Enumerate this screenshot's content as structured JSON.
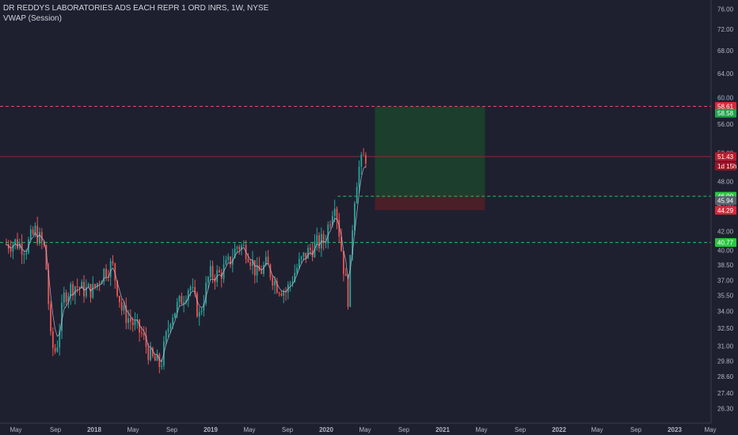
{
  "legend": {
    "title": "DR REDDYS LABORATORIES ADS EACH REPR 1 ORD INRS, 1W, NYSE",
    "indicator": "VWAP (Session)"
  },
  "colors": {
    "background": "#1e2030",
    "up": "#26a69a",
    "down": "#ef5350",
    "target_zone": "#1b3f2c",
    "stop_zone": "#4a1f28",
    "resistance_line": "#e84a5f",
    "support_line": "#22c55e",
    "axis_text": "#b2b5be"
  },
  "chart_data": {
    "type": "candlestick",
    "symbol": "DR REDDYS LABORATORIES ADS EACH REPR 1 ORD INRS",
    "interval": "1W",
    "exchange": "NYSE",
    "y_axis_ticks": [
      "76.00",
      "72.00",
      "68.00",
      "64.00",
      "60.00",
      "56.00",
      "52.00",
      "48.00",
      "45.00",
      "42.00",
      "40.00",
      "38.50",
      "37.00",
      "35.50",
      "34.00",
      "32.50",
      "31.00",
      "29.80",
      "28.60",
      "27.40",
      "26.30"
    ],
    "y_scale": "log",
    "y_range": [
      25.6,
      78.0
    ],
    "x_axis_ticks": [
      "May",
      "Sep",
      "2018",
      "May",
      "Sep",
      "2019",
      "May",
      "Sep",
      "2020",
      "May",
      "Sep",
      "2021",
      "May",
      "Sep",
      "2022",
      "May",
      "Sep",
      "2023",
      "May"
    ],
    "x_range": [
      "2017-04-01",
      "2023-05-15"
    ],
    "series": [
      {
        "type": "ohlc_close_path",
        "points": [
          [
            "2017-04-01",
            40.6
          ],
          [
            "2017-05-01",
            40.8
          ],
          [
            "2017-06-01",
            40.2
          ],
          [
            "2017-07-01",
            42.0
          ],
          [
            "2017-08-01",
            40.0
          ],
          [
            "2017-08-20",
            31.0
          ],
          [
            "2017-09-05",
            30.5
          ],
          [
            "2017-10-01",
            35.5
          ],
          [
            "2017-11-01",
            36.5
          ],
          [
            "2017-12-01",
            36.0
          ],
          [
            "2018-01-01",
            36.0
          ],
          [
            "2018-02-01",
            37.8
          ],
          [
            "2018-03-01",
            38.5
          ],
          [
            "2018-04-01",
            34.0
          ],
          [
            "2018-05-01",
            33.0
          ],
          [
            "2018-06-01",
            32.0
          ],
          [
            "2018-07-01",
            30.0
          ],
          [
            "2018-08-01",
            29.4
          ],
          [
            "2018-09-01",
            33.5
          ],
          [
            "2018-10-01",
            34.8
          ],
          [
            "2018-11-01",
            36.5
          ],
          [
            "2018-12-01",
            33.5
          ],
          [
            "2019-01-01",
            37.5
          ],
          [
            "2019-02-01",
            37.5
          ],
          [
            "2019-03-01",
            38.5
          ],
          [
            "2019-04-01",
            40.5
          ],
          [
            "2019-05-01",
            40.0
          ],
          [
            "2019-06-01",
            37.5
          ],
          [
            "2019-07-01",
            38.5
          ],
          [
            "2019-08-01",
            36.5
          ],
          [
            "2019-09-01",
            35.8
          ],
          [
            "2019-10-01",
            38.0
          ],
          [
            "2019-11-01",
            39.5
          ],
          [
            "2019-12-01",
            40.5
          ],
          [
            "2020-01-01",
            41.0
          ],
          [
            "2020-02-01",
            45.6
          ],
          [
            "2020-03-01",
            38.0
          ],
          [
            "2020-03-15",
            35.0
          ],
          [
            "2020-04-01",
            45.0
          ],
          [
            "2020-04-15",
            49.5
          ],
          [
            "2020-05-01",
            51.2
          ],
          [
            "2020-05-10",
            51.43
          ]
        ]
      }
    ],
    "vwap_session": "shown",
    "annotations": {
      "resistance_price": 58.61,
      "target_price": 58.58,
      "last_price": 51.43,
      "countdown": "1d 15h",
      "entry_price": 46.0,
      "entry_alt": 45.94,
      "stop_price": 44.29,
      "support_price": 40.77,
      "position_start": "2020-06-07",
      "position_end": "2021-05-20"
    },
    "grid": false
  },
  "labels": {
    "resistance": "58.61",
    "target": "58.58",
    "last": "51.43",
    "countdown": "1d 15h",
    "entry": "46.00",
    "entry_alt": "45.94",
    "stop": "44.29",
    "support": "40.77"
  }
}
